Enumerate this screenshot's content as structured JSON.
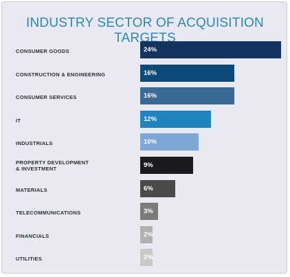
{
  "chart_data": {
    "type": "bar",
    "orientation": "horizontal",
    "title": "INDUSTRY SECTOR OF ACQUISITION TARGETS",
    "categories": [
      "CONSUMER GOODS",
      "CONSTRUCTION & ENGINEERING",
      "CONSUMER SERVICES",
      "IT",
      "INDUSTRIALS",
      "PROPERTY DEVELOPMENT\n& INVESTMENT",
      "MATERIALS",
      "TELECOMMUNICATIONS",
      "FINANCIALS",
      "UTILITIES"
    ],
    "values": [
      24,
      16,
      16,
      12,
      10,
      9,
      6,
      3,
      2,
      2
    ],
    "value_labels": [
      "24%",
      "16%",
      "16%",
      "12%",
      "10%",
      "9%",
      "6%",
      "3%",
      "2%",
      "2%"
    ],
    "colors": [
      "#14345f",
      "#0b4a78",
      "#3c6a96",
      "#1f86bd",
      "#7da7d4",
      "#1b1b1f",
      "#4a4a4a",
      "#7b7b7b",
      "#b0b0b0",
      "#c8c8c8"
    ],
    "xlim": [
      0,
      24
    ],
    "grid": false,
    "legend": "none"
  },
  "colors": {
    "title": "#2a86bb",
    "panel": "#e9eaf1"
  }
}
